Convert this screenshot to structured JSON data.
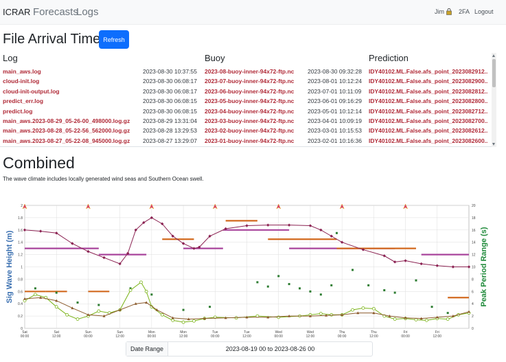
{
  "navbar": {
    "brand": "ICRAR",
    "links": [
      "Forecasts",
      "Logs"
    ],
    "user": "Jim",
    "twofa": "2FA",
    "logout": "Logout"
  },
  "file_arrival": {
    "title": "File Arrival Times",
    "refresh_label": "Refresh",
    "columns": [
      "Log",
      "Buoy",
      "Prediction"
    ],
    "rows": [
      {
        "log": "main_aws.log",
        "log_time": "2023-08-30 10:37:55",
        "buoy": "2023-08-buoy-inner-94x72-ftp.nc",
        "buoy_time": "2023-08-30 09:32:28",
        "prediction": "IDY40102.ML.False.afs_point_2023082912.."
      },
      {
        "log": "cloud-init.log",
        "log_time": "2023-08-30 06:08:17",
        "buoy": "2023-07-buoy-inner-94x72-ftp.nc",
        "buoy_time": "2023-08-01 10:12:24",
        "prediction": "IDY40102.ML.False.afs_point_2023082900.."
      },
      {
        "log": "cloud-init-output.log",
        "log_time": "2023-08-30 06:08:17",
        "buoy": "2023-06-buoy-inner-94x72-ftp.nc",
        "buoy_time": "2023-07-01 10:11:09",
        "prediction": "IDY40102.ML.False.afs_point_2023082812.."
      },
      {
        "log": "predict_err.log",
        "log_time": "2023-08-30 06:08:15",
        "buoy": "2023-05-buoy-inner-94x72-ftp.nc",
        "buoy_time": "2023-06-01 09:16:29",
        "prediction": "IDY40102.ML.False.afs_point_2023082800.."
      },
      {
        "log": "predict.log",
        "log_time": "2023-08-30 06:08:15",
        "buoy": "2023-04-buoy-inner-94x72-ftp.nc",
        "buoy_time": "2023-05-01 10:12:14",
        "prediction": "IDY40102.ML.False.afs_point_2023082712.."
      },
      {
        "log": "main_aws.2023-08-29_05-26-00_498000.log.gz",
        "log_time": "2023-08-29 13:31:04",
        "buoy": "2023-03-buoy-inner-94x72-ftp.nc",
        "buoy_time": "2023-04-01 10:09:19",
        "prediction": "IDY40102.ML.False.afs_point_2023082700.."
      },
      {
        "log": "main_aws.2023-08-28_05-22-56_562000.log.gz",
        "log_time": "2023-08-28 13:29:53",
        "buoy": "2023-02-buoy-inner-94x72-ftp.nc",
        "buoy_time": "2023-03-01 10:15:53",
        "prediction": "IDY40102.ML.False.afs_point_2023082612.."
      },
      {
        "log": "main_aws.2023-08-27_05-22-08_945000.log.gz",
        "log_time": "2023-08-27 13:29:07",
        "buoy": "2023-01-buoy-inner-94x72-ftp.nc",
        "buoy_time": "2023-02-01 10:16:36",
        "prediction": "IDY40102.ML.False.afs_point_2023082600.."
      }
    ]
  },
  "combined": {
    "title": "Combined",
    "description": "The wave climate includes locally generated wind seas and Southern Ocean swell.",
    "date_range_label": "Date Range",
    "date_range_value": "2023-08-19 00 to 2023-08-26 00"
  },
  "chart_data": {
    "type": "line",
    "ylabel": "Sig Wave Height (m)",
    "y2label": "Peak Period Range (s)",
    "ylim": [
      0,
      2
    ],
    "y2lim": [
      0,
      20
    ],
    "yticks": [
      0,
      0.2,
      0.4,
      0.6,
      0.8,
      1.0,
      1.2,
      1.4,
      1.6,
      1.8,
      2
    ],
    "y2ticks": [
      0,
      2,
      4,
      6,
      8,
      10,
      12,
      14,
      16,
      18,
      20
    ],
    "xlim": [
      0,
      168
    ],
    "xticks": [
      {
        "x": 0,
        "day": "Sat",
        "time": "00:00"
      },
      {
        "x": 12,
        "day": "Sat",
        "time": "12:00"
      },
      {
        "x": 24,
        "day": "Sun",
        "time": "00:00"
      },
      {
        "x": 36,
        "day": "Sun",
        "time": "12:00"
      },
      {
        "x": 48,
        "day": "Mon",
        "time": "00:00"
      },
      {
        "x": 60,
        "day": "Mon",
        "time": "12:00"
      },
      {
        "x": 72,
        "day": "Tue",
        "time": "00:00"
      },
      {
        "x": 84,
        "day": "Tue",
        "time": "12:00"
      },
      {
        "x": 96,
        "day": "Wed",
        "time": "00:00"
      },
      {
        "x": 108,
        "day": "Wed",
        "time": "12:00"
      },
      {
        "x": 120,
        "day": "Thu",
        "time": "00:00"
      },
      {
        "x": 132,
        "day": "Thu",
        "time": "12:00"
      },
      {
        "x": 144,
        "day": "Fri",
        "time": "00:00"
      },
      {
        "x": 156,
        "day": "Fri",
        "time": "12:00"
      }
    ],
    "grid": true,
    "colors": {
      "swell_hs": "#8b2252",
      "swell_period": "#a8449c",
      "sea_period": "#d2691e",
      "green_hs": "#7ab317",
      "brown_hs": "#8b5a2b",
      "scatter": "#2e7d32",
      "grid": "#dddddd",
      "arrow": "#d93a7a"
    },
    "series": [
      {
        "key": "swell_hs",
        "x": [
          0,
          6,
          12,
          18,
          24,
          30,
          36,
          39,
          42,
          45,
          48,
          52,
          56,
          60,
          64,
          66,
          70,
          76,
          84,
          92,
          100,
          108,
          112,
          116,
          120,
          128,
          136,
          140,
          144,
          150,
          156,
          162,
          168
        ],
        "values": [
          1.6,
          1.58,
          1.55,
          1.38,
          1.25,
          1.15,
          1.05,
          1.22,
          1.6,
          1.72,
          1.8,
          1.7,
          1.5,
          1.38,
          1.3,
          1.32,
          1.5,
          1.62,
          1.67,
          1.68,
          1.68,
          1.67,
          1.6,
          1.5,
          1.4,
          1.28,
          1.18,
          1.08,
          1.1,
          1.05,
          1.02,
          1.0,
          1.0
        ]
      },
      {
        "key": "green_hs",
        "x": [
          0,
          4,
          8,
          12,
          16,
          20,
          24,
          28,
          32,
          36,
          40,
          44,
          46,
          48,
          52,
          56,
          60,
          64,
          68,
          72,
          80,
          88,
          96,
          104,
          108,
          112,
          116,
          120,
          124,
          128,
          132,
          136,
          140,
          144,
          148,
          152,
          156,
          160,
          164,
          168
        ],
        "values": [
          0.45,
          0.55,
          0.5,
          0.35,
          0.22,
          0.15,
          0.2,
          0.28,
          0.25,
          0.3,
          0.62,
          0.75,
          0.6,
          0.35,
          0.22,
          0.13,
          0.1,
          0.12,
          0.16,
          0.18,
          0.17,
          0.2,
          0.18,
          0.2,
          0.22,
          0.24,
          0.22,
          0.22,
          0.3,
          0.33,
          0.32,
          0.2,
          0.15,
          0.16,
          0.14,
          0.13,
          0.16,
          0.15,
          0.22,
          0.25
        ]
      },
      {
        "key": "brown_hs",
        "x": [
          0,
          6,
          12,
          18,
          24,
          30,
          36,
          42,
          46,
          50,
          56,
          62,
          68,
          76,
          84,
          92,
          100,
          108,
          114,
          120,
          126,
          132,
          138,
          144,
          150,
          156,
          162,
          168
        ],
        "values": [
          0.48,
          0.5,
          0.45,
          0.33,
          0.22,
          0.2,
          0.3,
          0.4,
          0.42,
          0.3,
          0.17,
          0.15,
          0.16,
          0.17,
          0.18,
          0.18,
          0.2,
          0.2,
          0.21,
          0.22,
          0.25,
          0.25,
          0.2,
          0.17,
          0.16,
          0.18,
          0.2,
          0.27
        ]
      }
    ],
    "period_segments": [
      {
        "key": "swell_period",
        "x0": 0,
        "x1": 28,
        "y": 13
      },
      {
        "key": "swell_period",
        "x0": 28,
        "x1": 46,
        "y": 12
      },
      {
        "key": "swell_period",
        "x0": 60,
        "x1": 75,
        "y": 13
      },
      {
        "key": "swell_period",
        "x0": 75,
        "x1": 100,
        "y": 16
      },
      {
        "key": "swell_period",
        "x0": 100,
        "x1": 140,
        "y": 13
      },
      {
        "key": "swell_period",
        "x0": 150,
        "x1": 168,
        "y": 12
      },
      {
        "key": "sea_period",
        "x0": 0,
        "x1": 8,
        "y": 6
      },
      {
        "key": "sea_period",
        "x0": 8,
        "x1": 16,
        "y": 6
      },
      {
        "key": "sea_period",
        "x0": 24,
        "x1": 32,
        "y": 6
      },
      {
        "key": "sea_period",
        "x0": 52,
        "x1": 64,
        "y": 14.5
      },
      {
        "key": "sea_period",
        "x0": 76,
        "x1": 88,
        "y": 17.5
      },
      {
        "key": "sea_period",
        "x0": 92,
        "x1": 118,
        "y": 14.5
      },
      {
        "key": "sea_period",
        "x0": 118,
        "x1": 148,
        "y": 13
      },
      {
        "key": "sea_period",
        "x0": 160,
        "x1": 168,
        "y": 5
      }
    ],
    "period_scatter": {
      "key": "scatter",
      "x": [
        4,
        12,
        20,
        28,
        40,
        48,
        60,
        70,
        88,
        92,
        96,
        100,
        104,
        108,
        112,
        116,
        118,
        124,
        130,
        136,
        140,
        148,
        154,
        160
      ],
      "values": [
        6.5,
        5.8,
        4.2,
        3.8,
        6.5,
        5.5,
        3.0,
        3.5,
        7.5,
        6.8,
        8.5,
        7.2,
        6.5,
        6.0,
        5.5,
        7.0,
        15.5,
        9.5,
        7.0,
        6.2,
        5.8,
        7.8,
        3.5,
        2.5
      ]
    },
    "direction_arrows": [
      0,
      24,
      48,
      72,
      96,
      120,
      144
    ]
  }
}
